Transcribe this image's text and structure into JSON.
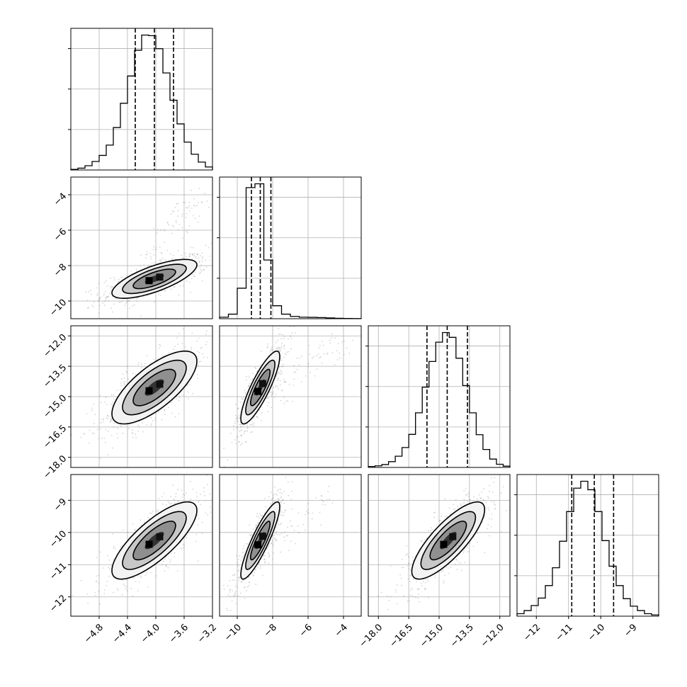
{
  "chart_data": {
    "type": "corner",
    "parameters": [
      {
        "label": "",
        "range": [
          -5.2,
          -3.2
        ],
        "ticks": [
          "−4.8",
          "−4.4",
          "−4.0",
          "−3.6",
          "−3.2"
        ],
        "tick_values": [
          -4.8,
          -4.4,
          -4.0,
          -3.6,
          -3.2
        ],
        "quantiles": [
          -4.29,
          -4.02,
          -3.75
        ],
        "hist": {
          "edges": [
            -5.2,
            -3.2
          ],
          "counts": [
            2,
            6,
            14,
            28,
            48,
            82,
            140,
            220,
            310,
            395,
            445,
            443,
            400,
            320,
            230,
            152,
            92,
            52,
            26,
            10
          ]
        }
      },
      {
        "label": "",
        "range": [
          -11,
          -3
        ],
        "ticks": [
          "−10",
          "−8",
          "−6",
          "−4"
        ],
        "tick_values": [
          -10,
          -8,
          -6,
          -4
        ],
        "quantiles": [
          -9.2,
          -8.7,
          -8.1
        ],
        "hist": {
          "edges": [
            -11,
            -3
          ],
          "counts": [
            20,
            60,
            400,
            1720,
            1770,
            770,
            170,
            60,
            30,
            20,
            18,
            15,
            10,
            5,
            3,
            2
          ]
        }
      },
      {
        "label": "",
        "range": [
          -18.5,
          -11.5
        ],
        "ticks": [
          "−18.0",
          "−16.5",
          "−15.0",
          "−13.5",
          "−12.0"
        ],
        "tick_values": [
          -18,
          -16.5,
          -15,
          -13.5,
          -12
        ],
        "quantiles": [
          -15.6,
          -14.6,
          -13.6
        ],
        "hist": {
          "edges": [
            -18.5,
            -11.5
          ],
          "counts": [
            3,
            5,
            9,
            18,
            35,
            62,
            103,
            170,
            250,
            330,
            390,
            420,
            405,
            340,
            255,
            170,
            102,
            56,
            26,
            10,
            4
          ]
        }
      },
      {
        "label": "",
        "range": [
          -12.6,
          -8.2
        ],
        "ticks": [
          "−12",
          "−11",
          "−10",
          "−9"
        ],
        "tick_values": [
          -12,
          -11,
          -10,
          -9
        ],
        "quantiles": [
          -10.9,
          -10.2,
          -9.6
        ],
        "hist": {
          "edges": [
            -12.6,
            -8.2
          ],
          "counts": [
            8,
            18,
            34,
            58,
            98,
            155,
            240,
            335,
            410,
            432,
            405,
            335,
            242,
            160,
            98,
            56,
            32,
            18,
            8,
            4
          ]
        }
      }
    ],
    "pairs": [
      {
        "row": 1,
        "col": 0,
        "mean": [
          -4.02,
          -8.75
        ],
        "sd": [
          0.3,
          0.55
        ],
        "corr": 0.72,
        "outliers": {
          "x": [
            -4.2,
            -3.3
          ],
          "y": [
            -7.8,
            -3.8
          ]
        }
      },
      {
        "row": 2,
        "col": 0,
        "mean": [
          -4.02,
          -14.55
        ],
        "sd": [
          0.3,
          0.9
        ],
        "corr": 0.72,
        "outliers": null
      },
      {
        "row": 2,
        "col": 1,
        "mean": [
          -8.7,
          -14.55
        ],
        "sd": [
          0.55,
          0.9
        ],
        "corr": 0.85,
        "outliers": {
          "x": [
            -9,
            -3.8
          ],
          "y": [
            -15.5,
            -12
          ]
        }
      },
      {
        "row": 3,
        "col": 0,
        "mean": [
          -4.02,
          -10.25
        ],
        "sd": [
          0.3,
          0.6
        ],
        "corr": 0.78,
        "outliers": null
      },
      {
        "row": 3,
        "col": 1,
        "mean": [
          -8.7,
          -10.25
        ],
        "sd": [
          0.55,
          0.6
        ],
        "corr": 0.88,
        "outliers": {
          "x": [
            -9,
            -4.5
          ],
          "y": [
            -10.8,
            -8.8
          ]
        }
      },
      {
        "row": 3,
        "col": 2,
        "mean": [
          -14.55,
          -10.25
        ],
        "sd": [
          0.9,
          0.6
        ],
        "corr": 0.8,
        "outliers": null
      }
    ],
    "grid": true
  }
}
